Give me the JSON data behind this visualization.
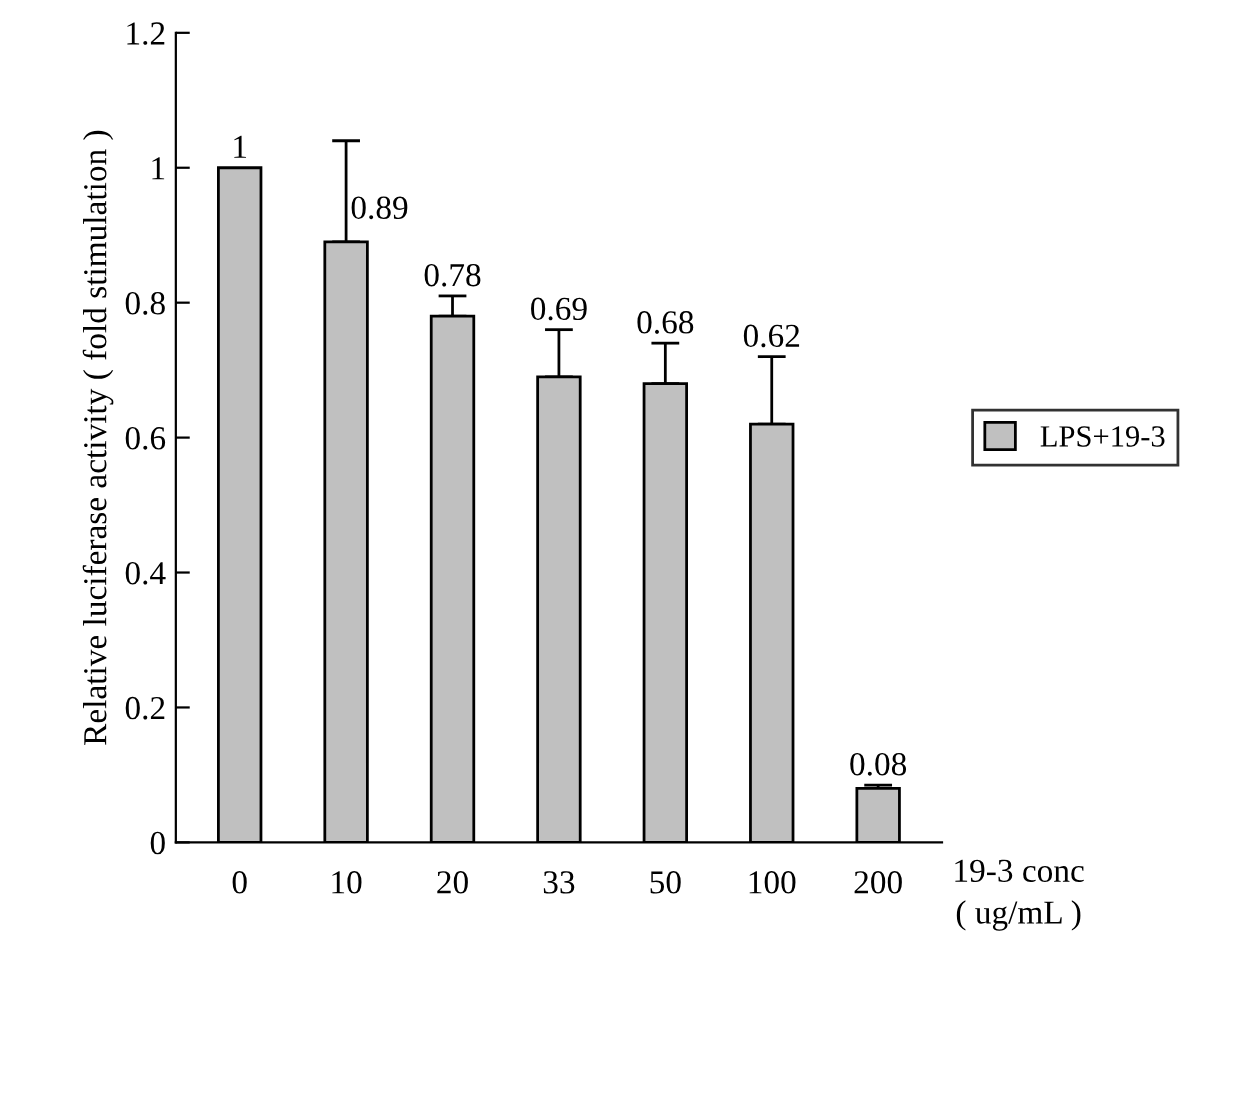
{
  "chart_data": {
    "type": "bar",
    "categories": [
      "0",
      "10",
      "20",
      "33",
      "50",
      "100",
      "200"
    ],
    "series": [
      {
        "name": "LPS+19-3",
        "color": "#c0c0c0",
        "values": [
          1,
          0.89,
          0.78,
          0.69,
          0.68,
          0.62,
          0.08
        ],
        "errors": [
          null,
          [
            0.89,
            1.04
          ],
          [
            0.78,
            0.81
          ],
          [
            0.69,
            0.76
          ],
          [
            0.68,
            0.74
          ],
          [
            0.62,
            0.72
          ],
          [
            0.08,
            0.085
          ]
        ]
      }
    ],
    "data_labels": true,
    "xlabel": "19-3 conc\n( ug/mL )",
    "ylabel": "Relative luciferase activity ( fold stimulation )",
    "ylim": [
      0,
      1.2
    ],
    "yticks": [
      0,
      {
        "value": 0.2,
        "label": "0.2"
      },
      {
        "value": 0.4,
        "label": "0.4"
      },
      {
        "value": 0.6,
        "label": "0.6"
      },
      {
        "value": 0.8,
        "label": "0.8"
      },
      1,
      {
        "value": 1.2,
        "label": "1.2"
      }
    ],
    "grid": false,
    "legend": "right"
  }
}
